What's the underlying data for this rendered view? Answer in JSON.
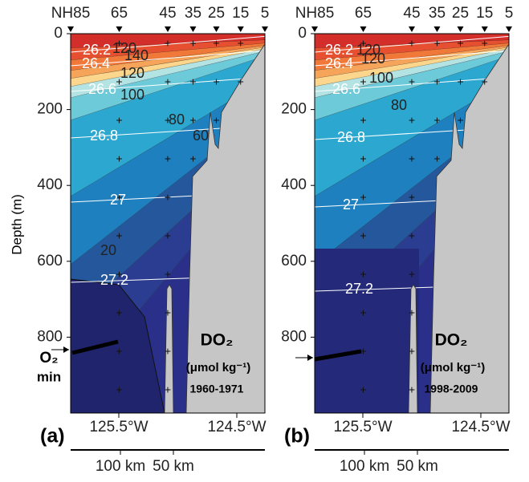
{
  "chart_data": [
    {
      "type": "contour",
      "panel_label": "(a)",
      "ylabel": "Depth (m)",
      "ylim": [
        0,
        1000
      ],
      "yticks": [
        0,
        200,
        400,
        600,
        800
      ],
      "stations": [
        "NH85",
        "65",
        "45",
        "35",
        "25",
        "15",
        "5"
      ],
      "x_labels": [
        "125.5°W",
        "124.5°W"
      ],
      "distance_labels": [
        "100 km",
        "50 km"
      ],
      "legend_title": "DO₂",
      "legend_units": "(μmol kg⁻¹)",
      "legend_period": "1960-1971",
      "o2_min_label": [
        "O₂",
        "min"
      ],
      "density_labels": [
        "26.2",
        "26.4",
        "26.6",
        "26.8",
        "27",
        "27.2"
      ],
      "oxygen_labels": [
        "120",
        "140",
        "120",
        "100",
        "80",
        "60",
        "20"
      ]
    },
    {
      "type": "contour",
      "panel_label": "(b)",
      "ylim": [
        0,
        1000
      ],
      "yticks": [
        0,
        200,
        400,
        600,
        800
      ],
      "stations": [
        "NH85",
        "65",
        "45",
        "35",
        "25",
        "15",
        "5"
      ],
      "x_labels": [
        "125.5°W",
        "124.5°W"
      ],
      "distance_labels": [
        "100 km",
        "50 km"
      ],
      "legend_title": "DO₂",
      "legend_units": "(μmol kg⁻¹)",
      "legend_period": "1998-2009",
      "density_labels": [
        "26.2",
        "26.4",
        "26.6",
        "26.8",
        "27",
        "27.2"
      ],
      "oxygen_labels": [
        "120",
        "120",
        "100",
        "80"
      ]
    }
  ]
}
